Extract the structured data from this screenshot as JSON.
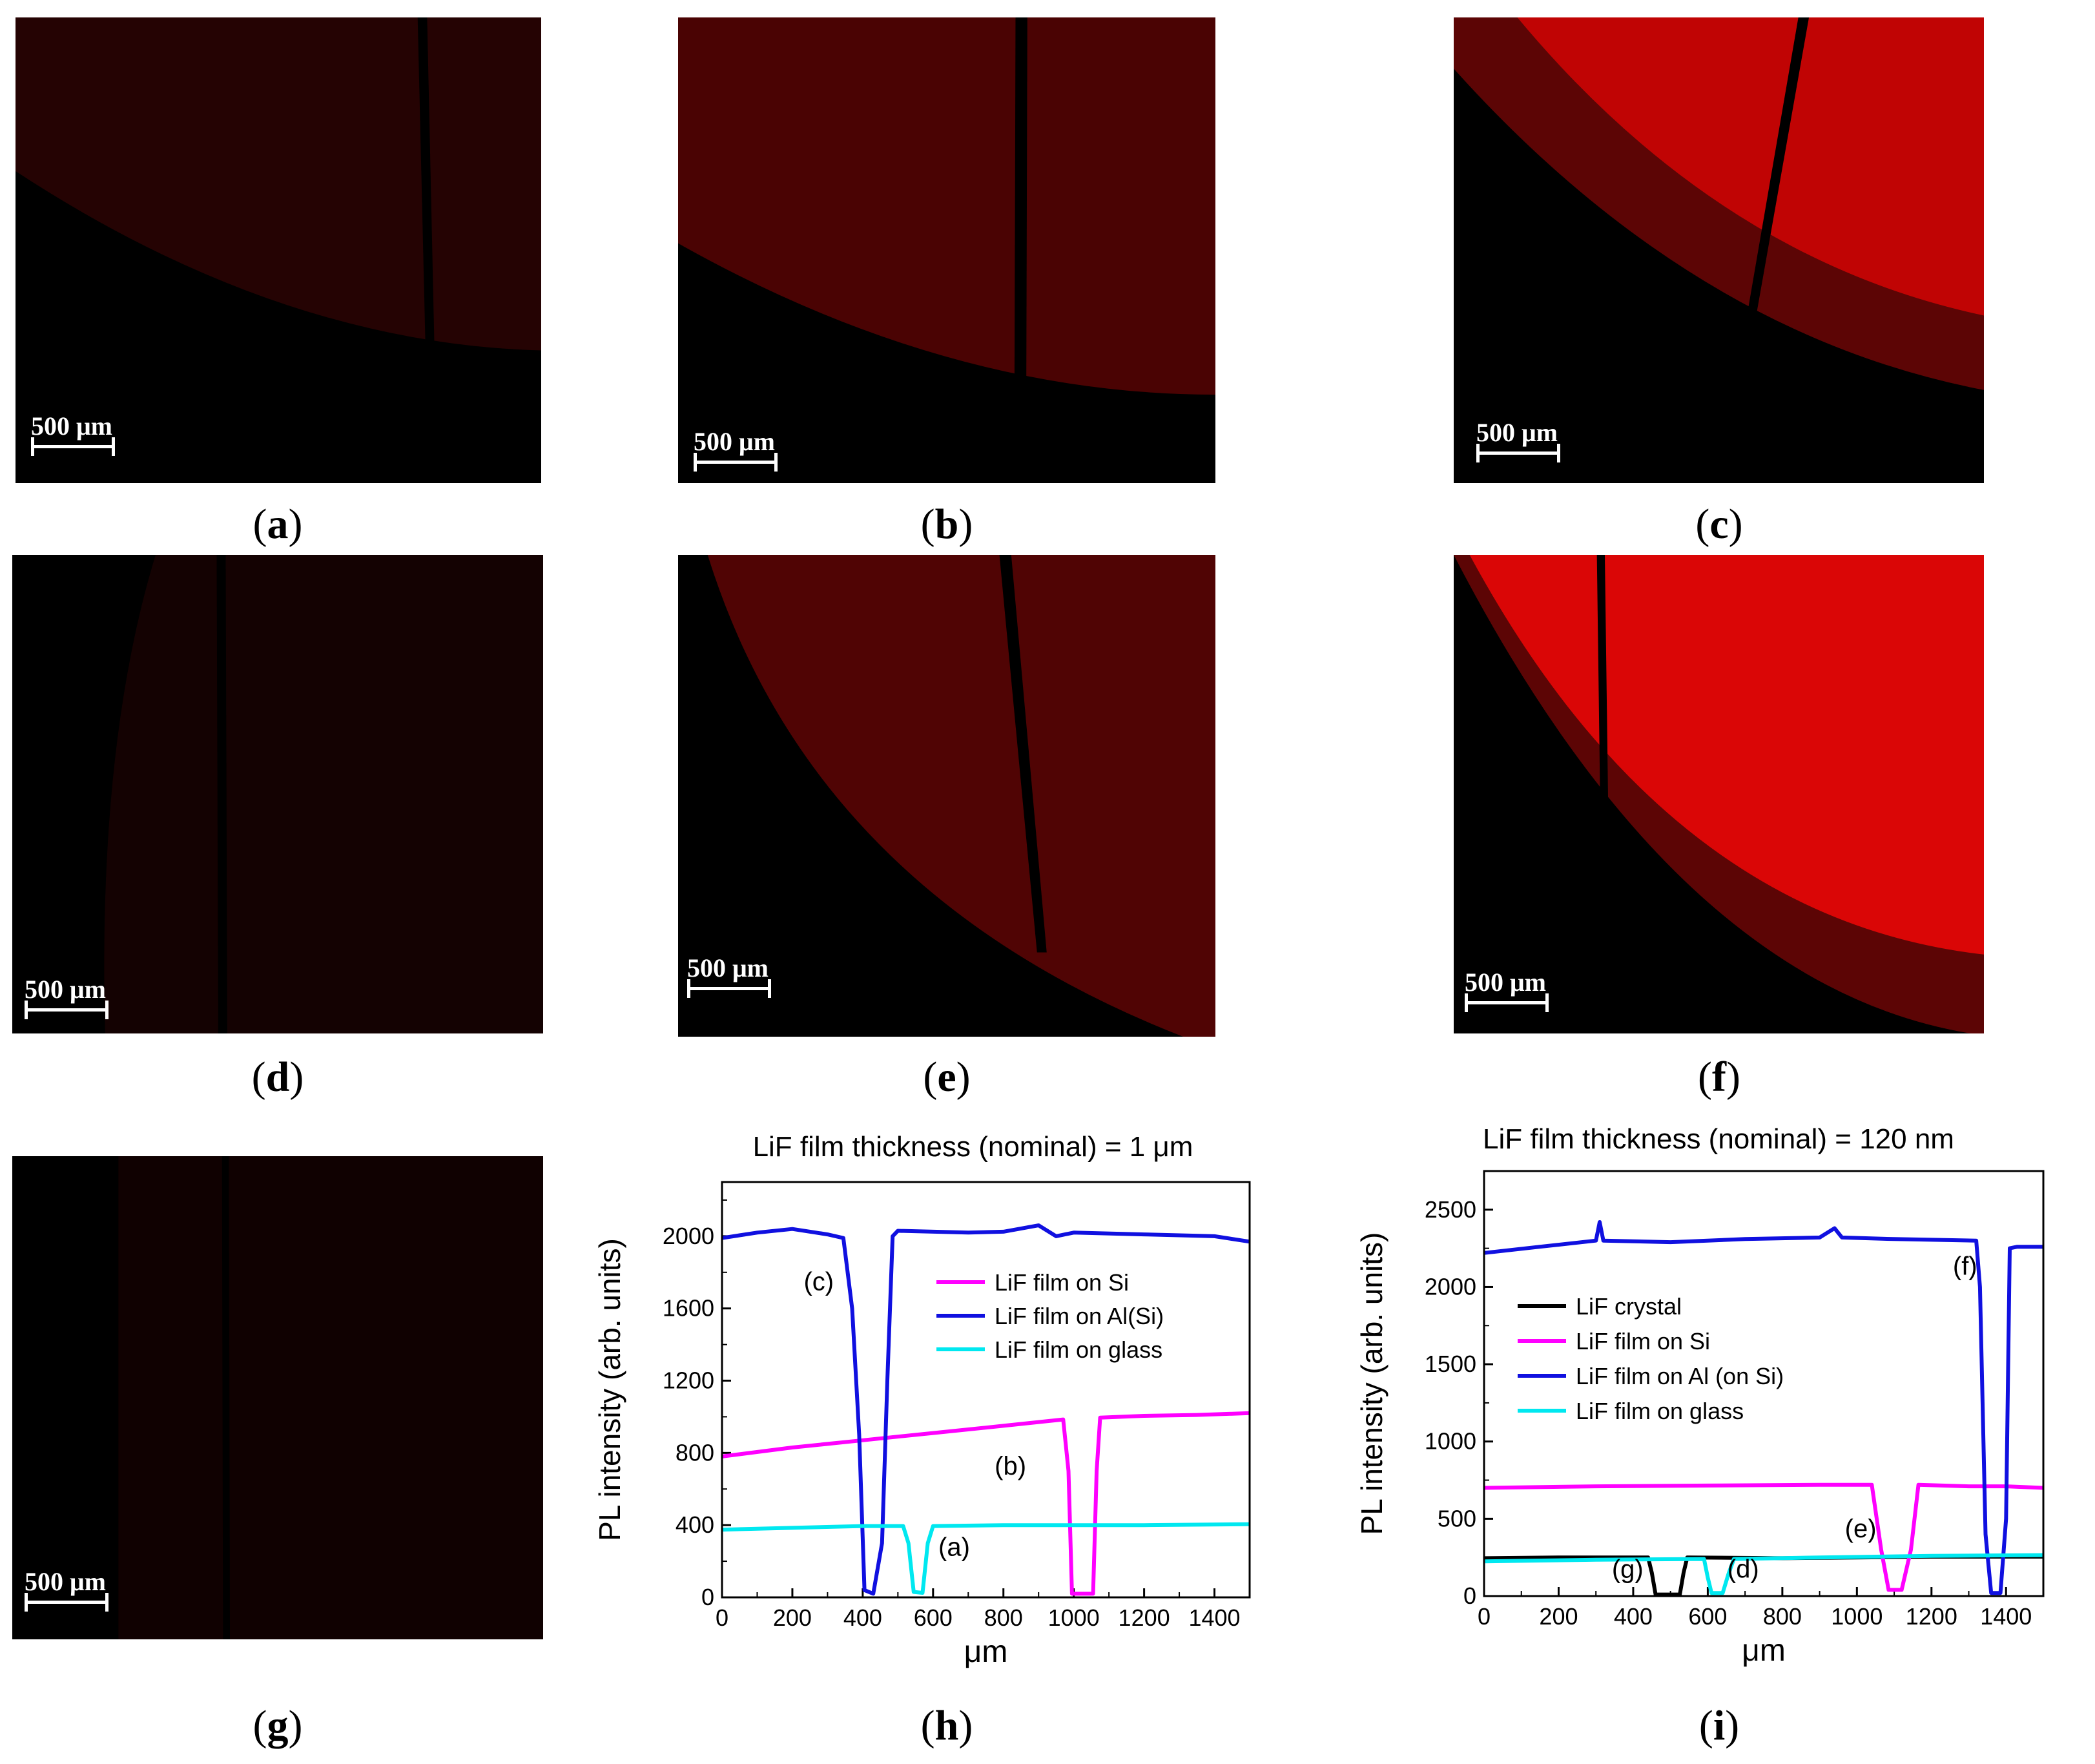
{
  "panels": [
    {
      "id": "a",
      "label": "a",
      "scale_bar": "500 μm"
    },
    {
      "id": "b",
      "label": "b",
      "scale_bar": "500 μm"
    },
    {
      "id": "c",
      "label": "c",
      "scale_bar": "500 μm"
    },
    {
      "id": "d",
      "label": "d",
      "scale_bar": "500 μm"
    },
    {
      "id": "e",
      "label": "e",
      "scale_bar": "500 μm"
    },
    {
      "id": "f",
      "label": "f",
      "scale_bar": "500 μm"
    },
    {
      "id": "g",
      "label": "g",
      "scale_bar": "500 μm"
    },
    {
      "id": "h",
      "label": "h"
    },
    {
      "id": "i",
      "label": "i"
    }
  ],
  "colors": {
    "magenta": "#ff00ff",
    "blue": "#1010e0",
    "cyan": "#00e8f0",
    "black": "#000000",
    "emission_red": "#d80000"
  },
  "chart_data": [
    {
      "id": "h",
      "type": "line",
      "title": "LiF film thickness (nominal) = 1 μm",
      "xlabel": "μm",
      "ylabel": "PL intensity (arb. units)",
      "xlim": [
        0,
        1500
      ],
      "ylim": [
        0,
        2300
      ],
      "xticks": [
        0,
        200,
        400,
        600,
        800,
        1000,
        1200,
        1400
      ],
      "yticks": [
        0,
        400,
        800,
        1200,
        1600,
        2000
      ],
      "legend_position": "center-right",
      "series": [
        {
          "name": "LiF film on Si",
          "color": "#ff00ff",
          "points": [
            [
              0,
              780
            ],
            [
              200,
              830
            ],
            [
              400,
              870
            ],
            [
              600,
              910
            ],
            [
              800,
              950
            ],
            [
              970,
              985
            ],
            [
              985,
              700
            ],
            [
              995,
              20
            ],
            [
              1055,
              20
            ],
            [
              1065,
              700
            ],
            [
              1075,
              995
            ],
            [
              1200,
              1005
            ],
            [
              1350,
              1010
            ],
            [
              1500,
              1020
            ]
          ]
        },
        {
          "name": "LiF film on Al(Si)",
          "color": "#1010e0",
          "points": [
            [
              0,
              1990
            ],
            [
              100,
              2020
            ],
            [
              200,
              2040
            ],
            [
              300,
              2010
            ],
            [
              345,
              1990
            ],
            [
              370,
              1600
            ],
            [
              390,
              900
            ],
            [
              405,
              40
            ],
            [
              430,
              20
            ],
            [
              455,
              300
            ],
            [
              470,
              1200
            ],
            [
              485,
              2000
            ],
            [
              500,
              2030
            ],
            [
              700,
              2020
            ],
            [
              800,
              2025
            ],
            [
              900,
              2060
            ],
            [
              950,
              2000
            ],
            [
              1000,
              2020
            ],
            [
              1200,
              2010
            ],
            [
              1400,
              2000
            ],
            [
              1500,
              1970
            ]
          ]
        },
        {
          "name": "LiF film on glass",
          "color": "#00e8f0",
          "points": [
            [
              0,
              375
            ],
            [
              200,
              385
            ],
            [
              400,
              395
            ],
            [
              515,
              395
            ],
            [
              530,
              300
            ],
            [
              545,
              30
            ],
            [
              570,
              25
            ],
            [
              585,
              300
            ],
            [
              600,
              395
            ],
            [
              800,
              400
            ],
            [
              1000,
              400
            ],
            [
              1200,
              400
            ],
            [
              1500,
              405
            ]
          ]
        }
      ],
      "annotations": [
        {
          "text": "(c)",
          "x": 275,
          "y": 1700
        },
        {
          "text": "(b)",
          "x": 820,
          "y": 680
        },
        {
          "text": "(a)",
          "x": 660,
          "y": 230
        }
      ]
    },
    {
      "id": "i",
      "type": "line",
      "title": "LiF film thickness (nominal) = 120 nm",
      "xlabel": "μm",
      "ylabel": "PL intensity (arb. units)",
      "xlim": [
        0,
        1500
      ],
      "ylim": [
        0,
        2750
      ],
      "xticks": [
        0,
        200,
        400,
        600,
        800,
        1000,
        1200,
        1400
      ],
      "yticks": [
        0,
        500,
        1000,
        1500,
        2000,
        2500
      ],
      "legend_position": "center-left",
      "series": [
        {
          "name": "LiF crystal",
          "color": "#000000",
          "points": [
            [
              0,
              245
            ],
            [
              200,
              250
            ],
            [
              440,
              250
            ],
            [
              450,
              150
            ],
            [
              460,
              10
            ],
            [
              525,
              10
            ],
            [
              535,
              150
            ],
            [
              545,
              250
            ],
            [
              800,
              245
            ],
            [
              1000,
              250
            ],
            [
              1200,
              255
            ],
            [
              1500,
              255
            ]
          ]
        },
        {
          "name": "LiF film on Si",
          "color": "#ff00ff",
          "points": [
            [
              0,
              700
            ],
            [
              300,
              710
            ],
            [
              600,
              715
            ],
            [
              900,
              720
            ],
            [
              1040,
              720
            ],
            [
              1065,
              300
            ],
            [
              1085,
              40
            ],
            [
              1120,
              40
            ],
            [
              1145,
              300
            ],
            [
              1165,
              720
            ],
            [
              1300,
              710
            ],
            [
              1400,
              710
            ],
            [
              1500,
              700
            ]
          ]
        },
        {
          "name": "LiF film on Al (on Si)",
          "color": "#1010e0",
          "points": [
            [
              0,
              2220
            ],
            [
              150,
              2260
            ],
            [
              300,
              2300
            ],
            [
              310,
              2420
            ],
            [
              320,
              2300
            ],
            [
              500,
              2290
            ],
            [
              700,
              2310
            ],
            [
              900,
              2320
            ],
            [
              940,
              2380
            ],
            [
              960,
              2320
            ],
            [
              1100,
              2310
            ],
            [
              1320,
              2300
            ],
            [
              1330,
              2000
            ],
            [
              1345,
              400
            ],
            [
              1360,
              20
            ],
            [
              1385,
              20
            ],
            [
              1400,
              500
            ],
            [
              1410,
              2250
            ],
            [
              1430,
              2260
            ],
            [
              1500,
              2260
            ]
          ]
        },
        {
          "name": "LiF film on glass",
          "color": "#00e8f0",
          "points": [
            [
              0,
              225
            ],
            [
              300,
              235
            ],
            [
              590,
              240
            ],
            [
              600,
              120
            ],
            [
              610,
              20
            ],
            [
              640,
              20
            ],
            [
              655,
              140
            ],
            [
              670,
              240
            ],
            [
              900,
              250
            ],
            [
              1200,
              260
            ],
            [
              1500,
              265
            ]
          ]
        }
      ],
      "annotations": [
        {
          "text": "(f)",
          "x": 1290,
          "y": 2080
        },
        {
          "text": "(e)",
          "x": 1010,
          "y": 380
        },
        {
          "text": "(g)",
          "x": 385,
          "y": 120
        },
        {
          "text": "(d)",
          "x": 695,
          "y": 120
        }
      ]
    }
  ]
}
